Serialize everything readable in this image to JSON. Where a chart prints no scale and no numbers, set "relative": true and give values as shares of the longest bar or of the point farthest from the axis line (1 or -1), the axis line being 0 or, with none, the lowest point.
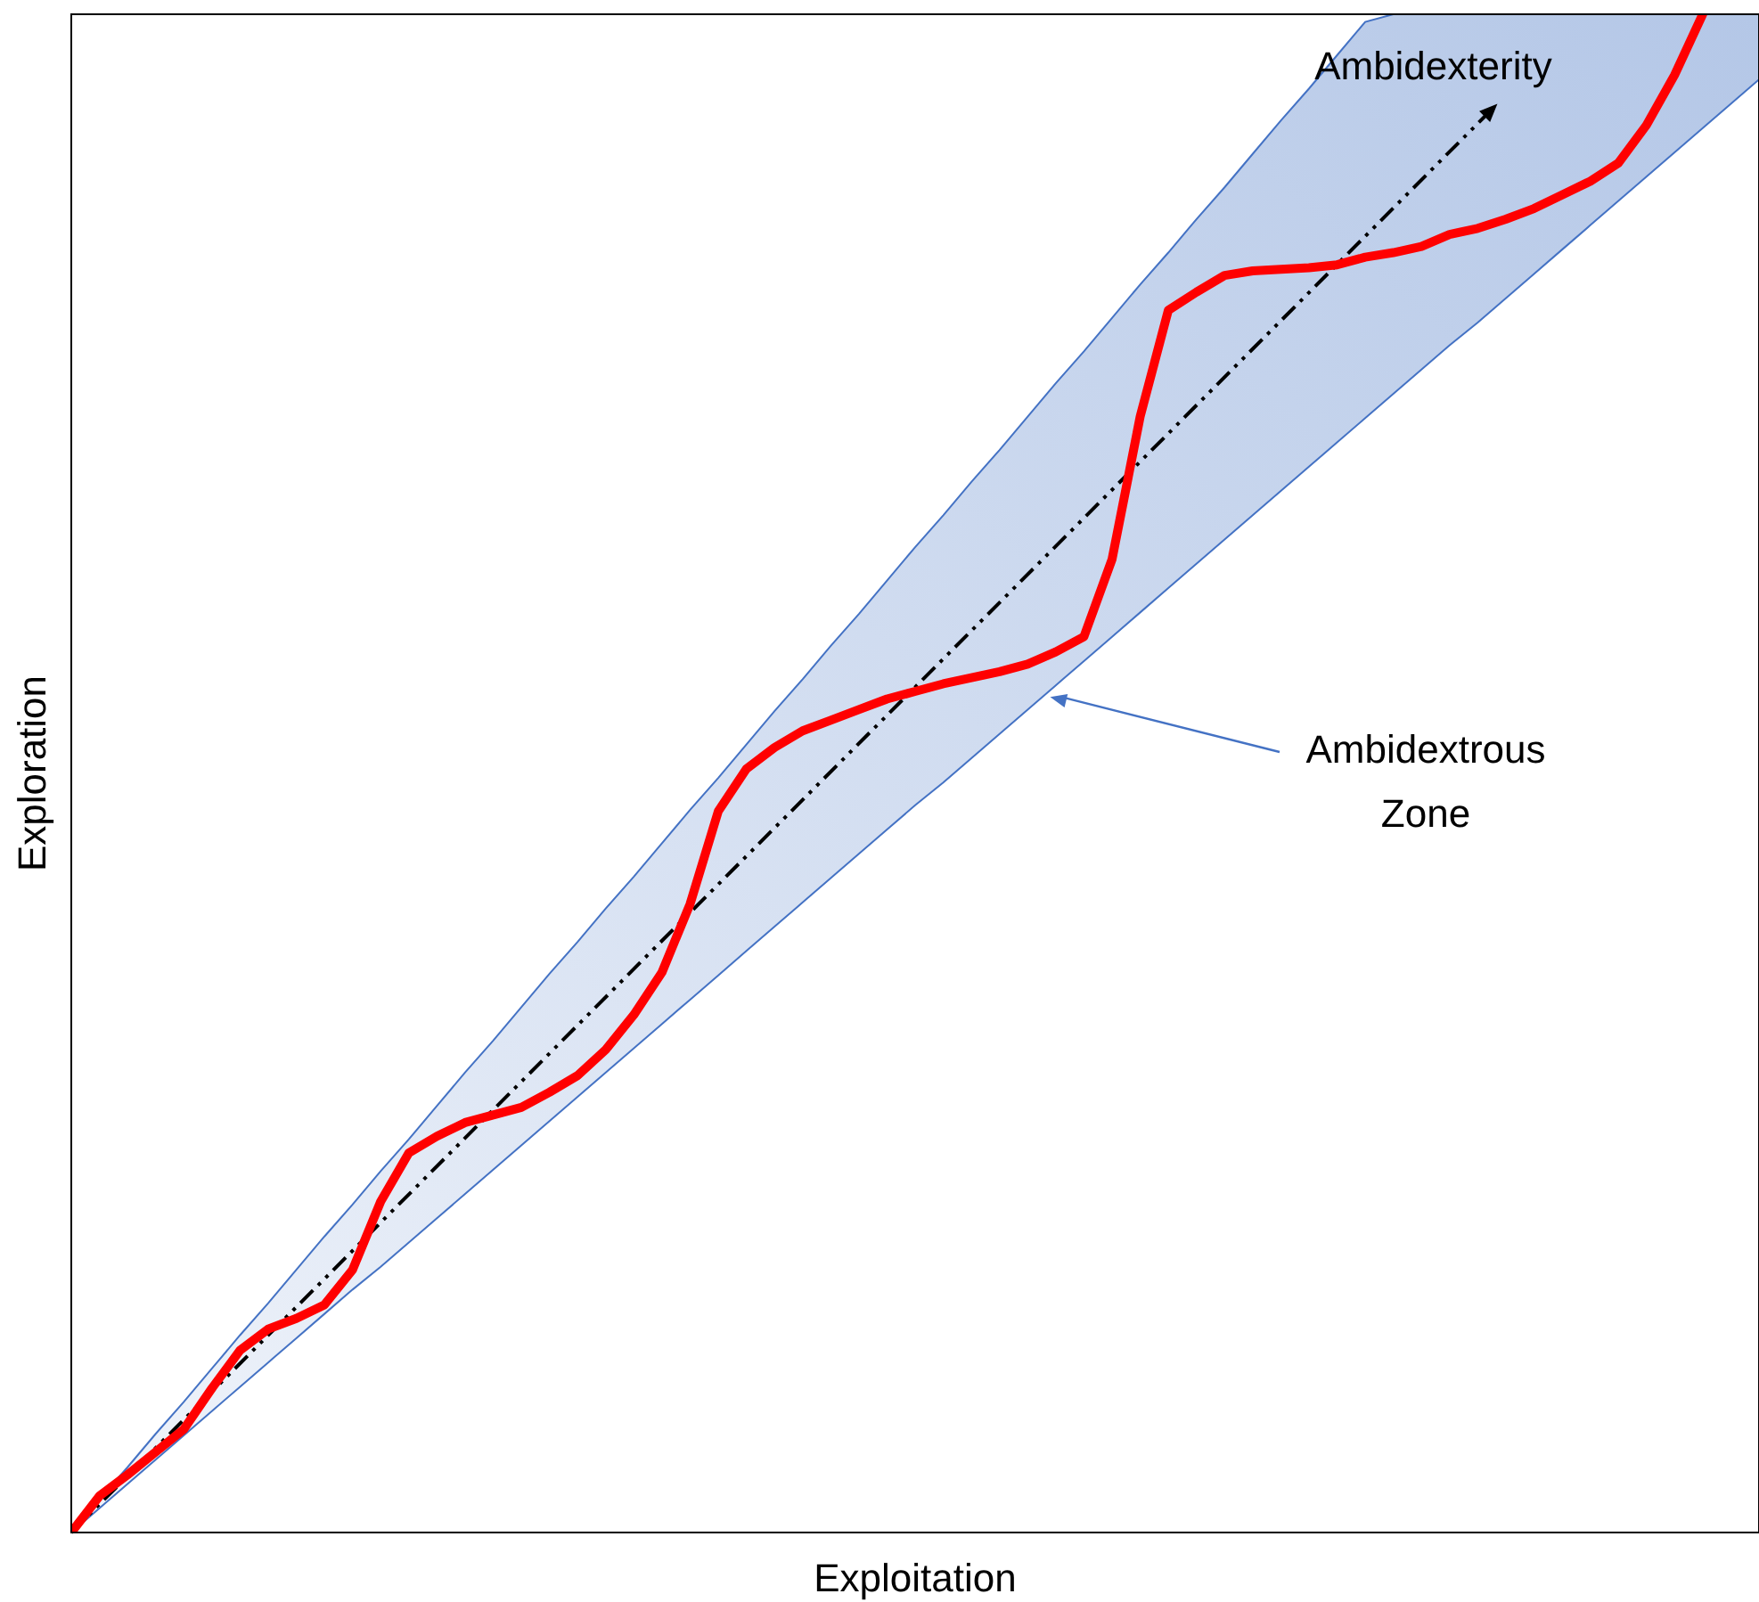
{
  "chart_data": {
    "type": "line",
    "xlabel": "Exploitation",
    "ylabel": "Exploration",
    "relative": true,
    "annotations": [
      "Ambidexterity",
      "Ambidextrous Zone"
    ],
    "categories": [
      null,
      null,
      null,
      null,
      null,
      null,
      null,
      null,
      null,
      null,
      null,
      null,
      null,
      null,
      null,
      null,
      null,
      null,
      null,
      null,
      null,
      null,
      null,
      null,
      null,
      null,
      null,
      null,
      null,
      null,
      null,
      null,
      null,
      null,
      null,
      null,
      null,
      null,
      null,
      null,
      null,
      null,
      null,
      null,
      null,
      null,
      null,
      null,
      null,
      null,
      null,
      null,
      null,
      null,
      null,
      null,
      null,
      null,
      null,
      null,
      null
    ],
    "series": [
      {
        "color": "#ff0000",
        "values": [
          0,
          0.024,
          0.038,
          0.053,
          0.068,
          0.095,
          0.12,
          0.134,
          0.141,
          0.15,
          0.173,
          0.218,
          0.25,
          0.261,
          0.27,
          0.275,
          0.28,
          0.29,
          0.301,
          0.318,
          0.341,
          0.369,
          0.414,
          0.475,
          0.503,
          0.517,
          0.528,
          0.535,
          0.542,
          0.549,
          0.554,
          0.559,
          0.563,
          0.567,
          0.572,
          0.58,
          0.59,
          0.641,
          0.735,
          0.805,
          0.817,
          0.828,
          0.831,
          0.832,
          0.833,
          0.835,
          0.84,
          0.843,
          0.847,
          0.855,
          0.859,
          0.865,
          0.872,
          0.881,
          0.89,
          0.902,
          0.927,
          0.96,
          1,
          null,
          null
        ],
        "lower": [
          0,
          0.016,
          0.032,
          0.048,
          0.064,
          0.08,
          0.096,
          0.112,
          0.128,
          0.144,
          0.16,
          0.175,
          0.191,
          0.207,
          0.223,
          0.239,
          0.255,
          0.271,
          0.287,
          0.303,
          0.319,
          0.335,
          0.351,
          0.367,
          0.383,
          0.399,
          0.415,
          0.431,
          0.447,
          0.463,
          0.479,
          0.494,
          0.51,
          0.526,
          0.542,
          0.558,
          0.574,
          0.59,
          0.606,
          0.622,
          0.638,
          0.654,
          0.67,
          0.686,
          0.702,
          0.718,
          0.734,
          0.75,
          0.766,
          0.782,
          0.797,
          0.813,
          0.829,
          0.845,
          0.861,
          0.877,
          0.893,
          0.909,
          0.925,
          0.941,
          0.957
        ],
        "upper": [
          0,
          0.022,
          0.043,
          0.065,
          0.086,
          0.108,
          0.13,
          0.151,
          0.173,
          0.195,
          0.216,
          0.238,
          0.259,
          0.281,
          0.303,
          0.324,
          0.346,
          0.368,
          0.389,
          0.411,
          0.432,
          0.454,
          0.476,
          0.497,
          0.519,
          0.541,
          0.562,
          0.584,
          0.605,
          0.627,
          0.649,
          0.67,
          0.692,
          0.713,
          0.735,
          0.757,
          0.778,
          0.8,
          0.822,
          0.843,
          0.865,
          0.886,
          0.908,
          0.93,
          0.951,
          0.973,
          0.995,
          1,
          1,
          1,
          1,
          1,
          1,
          1,
          1,
          1,
          1,
          1,
          1,
          1,
          1
        ]
      }
    ]
  }
}
